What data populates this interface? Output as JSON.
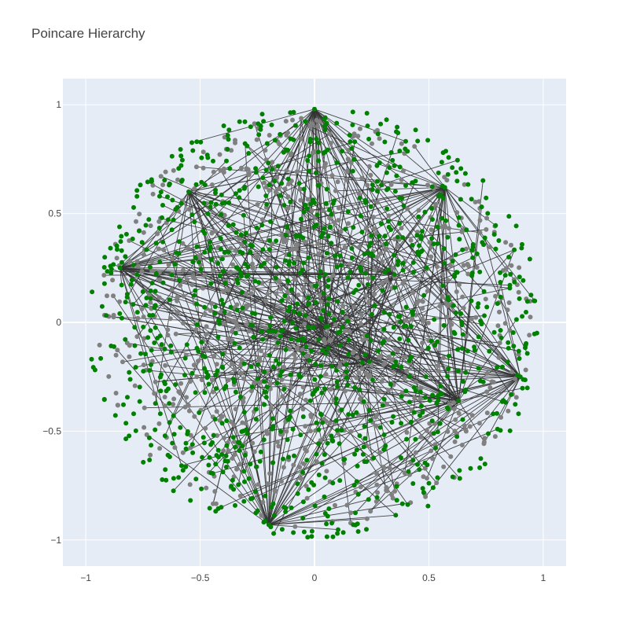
{
  "chart_data": {
    "type": "scatter",
    "title": "Poincare Hierarchy",
    "xlabel": "",
    "ylabel": "",
    "xlim": [
      -1.1,
      1.1
    ],
    "ylim": [
      -1.12,
      1.12
    ],
    "x_ticks": [
      -1,
      -0.5,
      0,
      0.5,
      1
    ],
    "y_ticks": [
      -1,
      -0.5,
      0,
      0.5,
      1
    ],
    "x_tick_labels": [
      "−1",
      "−0.5",
      "0",
      "0.5",
      "1"
    ],
    "y_tick_labels": [
      "−1",
      "−0.5",
      "0",
      "0.5",
      "1"
    ],
    "grid": true,
    "legend": "none",
    "colors": {
      "plot_bg": "#e5ecf6",
      "grid": "#ffffff",
      "series_a": "#008000",
      "series_b": "#808080",
      "edges": "#333333"
    },
    "series": [
      {
        "color": "green",
        "marker": "circle",
        "count": 1100,
        "domain": "unit disk, radius up to 0.99"
      },
      {
        "color": "gray",
        "marker": "circle",
        "count": 800,
        "domain": "unit disk, radius up to 0.95"
      }
    ],
    "hubs": [
      [
        0.05,
        -0.02
      ],
      [
        0.24,
        -0.18
      ],
      [
        0.06,
        -0.12
      ],
      [
        -0.09,
        0.05
      ],
      [
        0.63,
        -0.36
      ],
      [
        0.57,
        0.62
      ],
      [
        -0.2,
        -0.93
      ],
      [
        -0.55,
        0.6
      ],
      [
        -0.85,
        0.25
      ],
      [
        0.0,
        0.98
      ],
      [
        0.35,
        0.22
      ],
      [
        0.9,
        -0.25
      ]
    ],
    "edge_count": 450
  }
}
